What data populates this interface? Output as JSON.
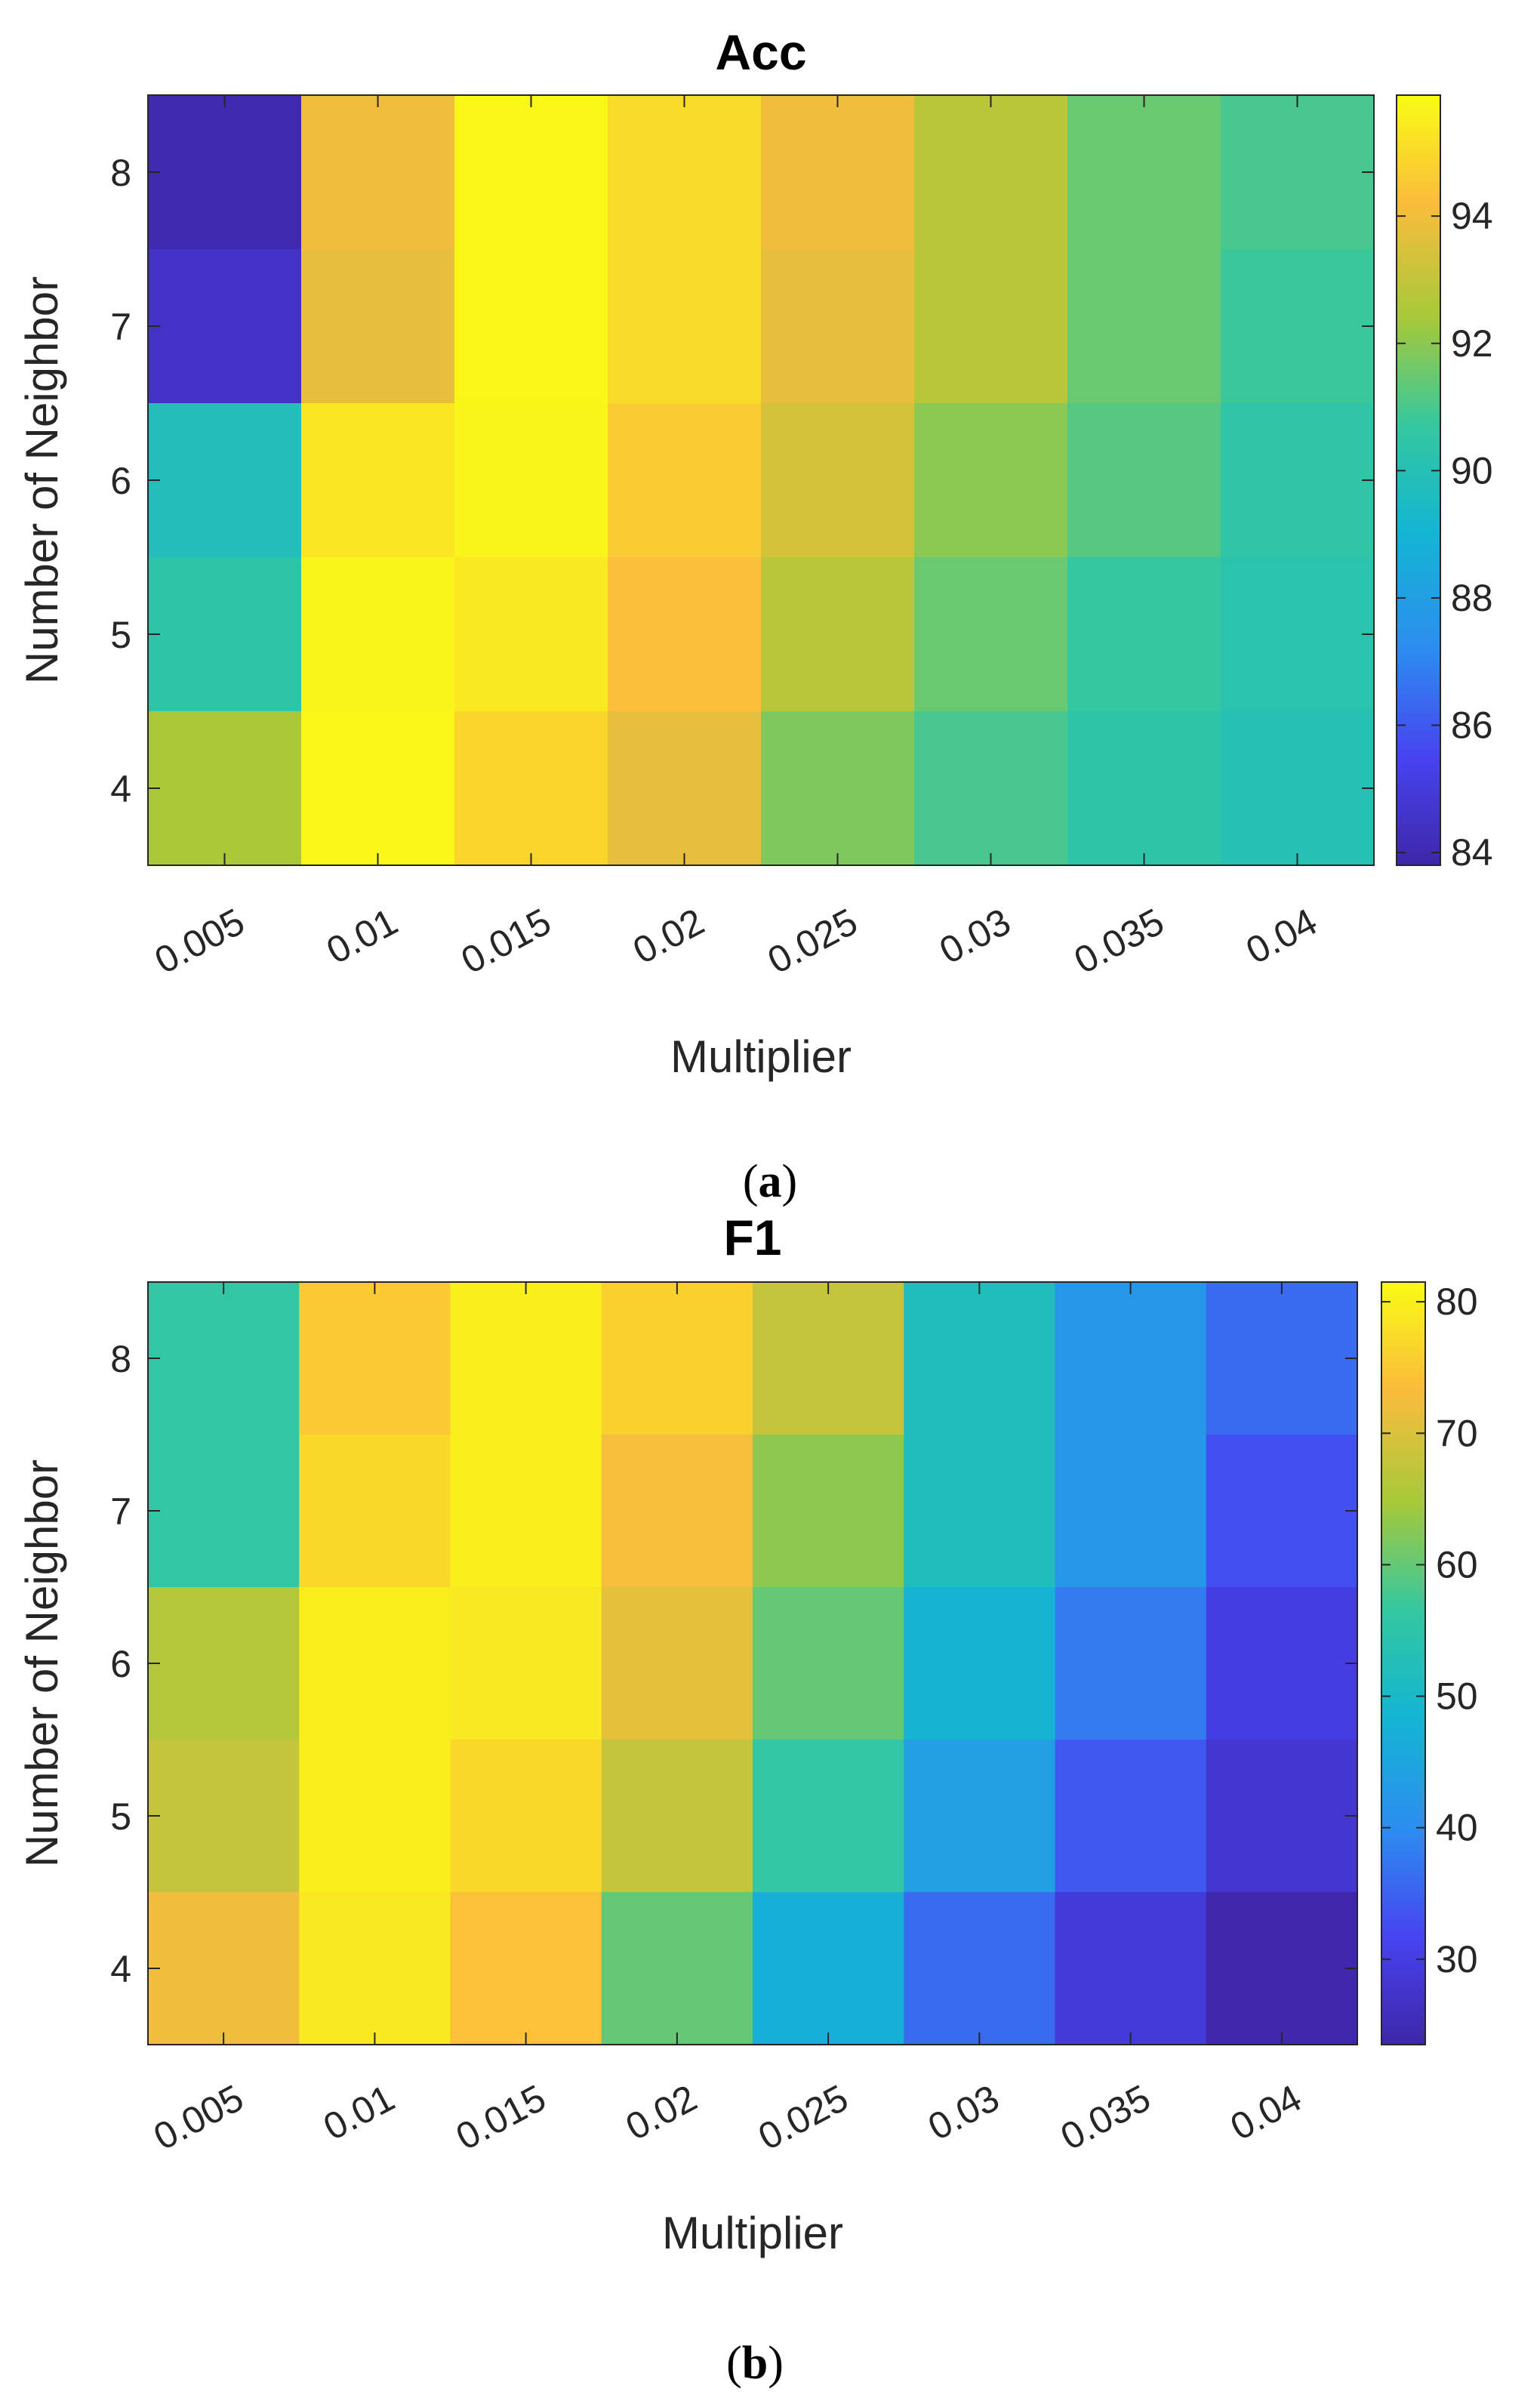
{
  "chart_data": [
    {
      "type": "heatmap",
      "title": "Acc",
      "caption": "a",
      "xlabel": "Multiplier",
      "ylabel": "Number of Neighbor",
      "x_categories": [
        "0.005",
        "0.01",
        "0.015",
        "0.02",
        "0.025",
        "0.03",
        "0.035",
        "0.04"
      ],
      "y_categories": [
        "8",
        "7",
        "6",
        "5",
        "4"
      ],
      "values": [
        [
          84.0,
          94.0,
          95.8,
          95.0,
          94.0,
          92.8,
          91.5,
          91.0
        ],
        [
          84.5,
          93.8,
          95.8,
          95.0,
          93.8,
          92.8,
          91.5,
          90.8
        ],
        [
          89.8,
          95.3,
          95.7,
          94.6,
          93.4,
          92.0,
          91.2,
          90.5
        ],
        [
          90.4,
          95.7,
          95.4,
          94.3,
          92.8,
          91.5,
          90.7,
          90.3
        ],
        [
          92.5,
          95.8,
          94.9,
          93.8,
          91.8,
          91.0,
          90.4,
          90.0
        ]
      ],
      "colorbar": {
        "min": 83.8,
        "max": 95.9,
        "ticks": [
          "84",
          "86",
          "88",
          "90",
          "92",
          "94"
        ]
      }
    },
    {
      "type": "heatmap",
      "title": "F1",
      "caption": "b",
      "xlabel": "Multiplier",
      "ylabel": "Number of Neighbor",
      "x_categories": [
        "0.005",
        "0.01",
        "0.015",
        "0.02",
        "0.025",
        "0.03",
        "0.035",
        "0.04"
      ],
      "y_categories": [
        "8",
        "7",
        "6",
        "5",
        "4"
      ],
      "values": [
        [
          56,
          75,
          80,
          76,
          68,
          52,
          42,
          36
        ],
        [
          56,
          77,
          80,
          73,
          63,
          52,
          42,
          33
        ],
        [
          66,
          80,
          79,
          71,
          60,
          48,
          38,
          30
        ],
        [
          68,
          80,
          77,
          68,
          56,
          44,
          34,
          28
        ],
        [
          72,
          79,
          74,
          60,
          47,
          36,
          29,
          24
        ]
      ],
      "colorbar": {
        "min": 23.5,
        "max": 81.5,
        "ticks": [
          "30",
          "40",
          "50",
          "60",
          "70",
          "80"
        ]
      }
    }
  ]
}
